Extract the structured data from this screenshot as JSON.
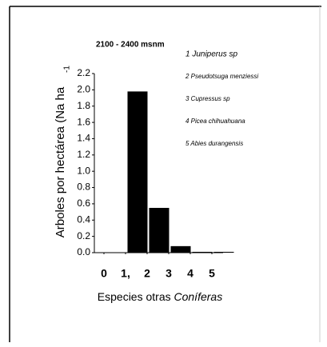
{
  "chart_data": {
    "type": "bar",
    "title": "2100 - 2400 msnm",
    "ylabel": "Arboles por hectárea (Na ha",
    "ylabel_superscript": "-1",
    "xlabel": "Especies otras",
    "xlabel_italic": "Coníferas",
    "annotations": [
      "1  Juniperus sp",
      "2 Pseudotsuga menziessi",
      "3 Cupressus sp",
      "4 Picea chihuahuana",
      "5 Abies durangensis"
    ],
    "x": [
      1,
      2,
      3,
      4,
      5
    ],
    "values": [
      1.98,
      0.55,
      0.08,
      0.01,
      0.01
    ],
    "color": "#000000",
    "xlim": [
      0,
      5
    ],
    "xticks": [
      0,
      {
        "value": 1,
        "label": "1,"
      },
      2,
      3,
      4,
      5
    ],
    "ylim": [
      0,
      2.2
    ],
    "yticks": [
      {
        "value": 0,
        "label": "0.0"
      },
      0.2,
      0.4,
      0.6,
      0.8,
      {
        "value": 1,
        "label": "1.0"
      },
      1.2,
      1.4,
      1.6,
      1.8,
      {
        "value": 2,
        "label": "2.0"
      },
      2.2
    ]
  }
}
